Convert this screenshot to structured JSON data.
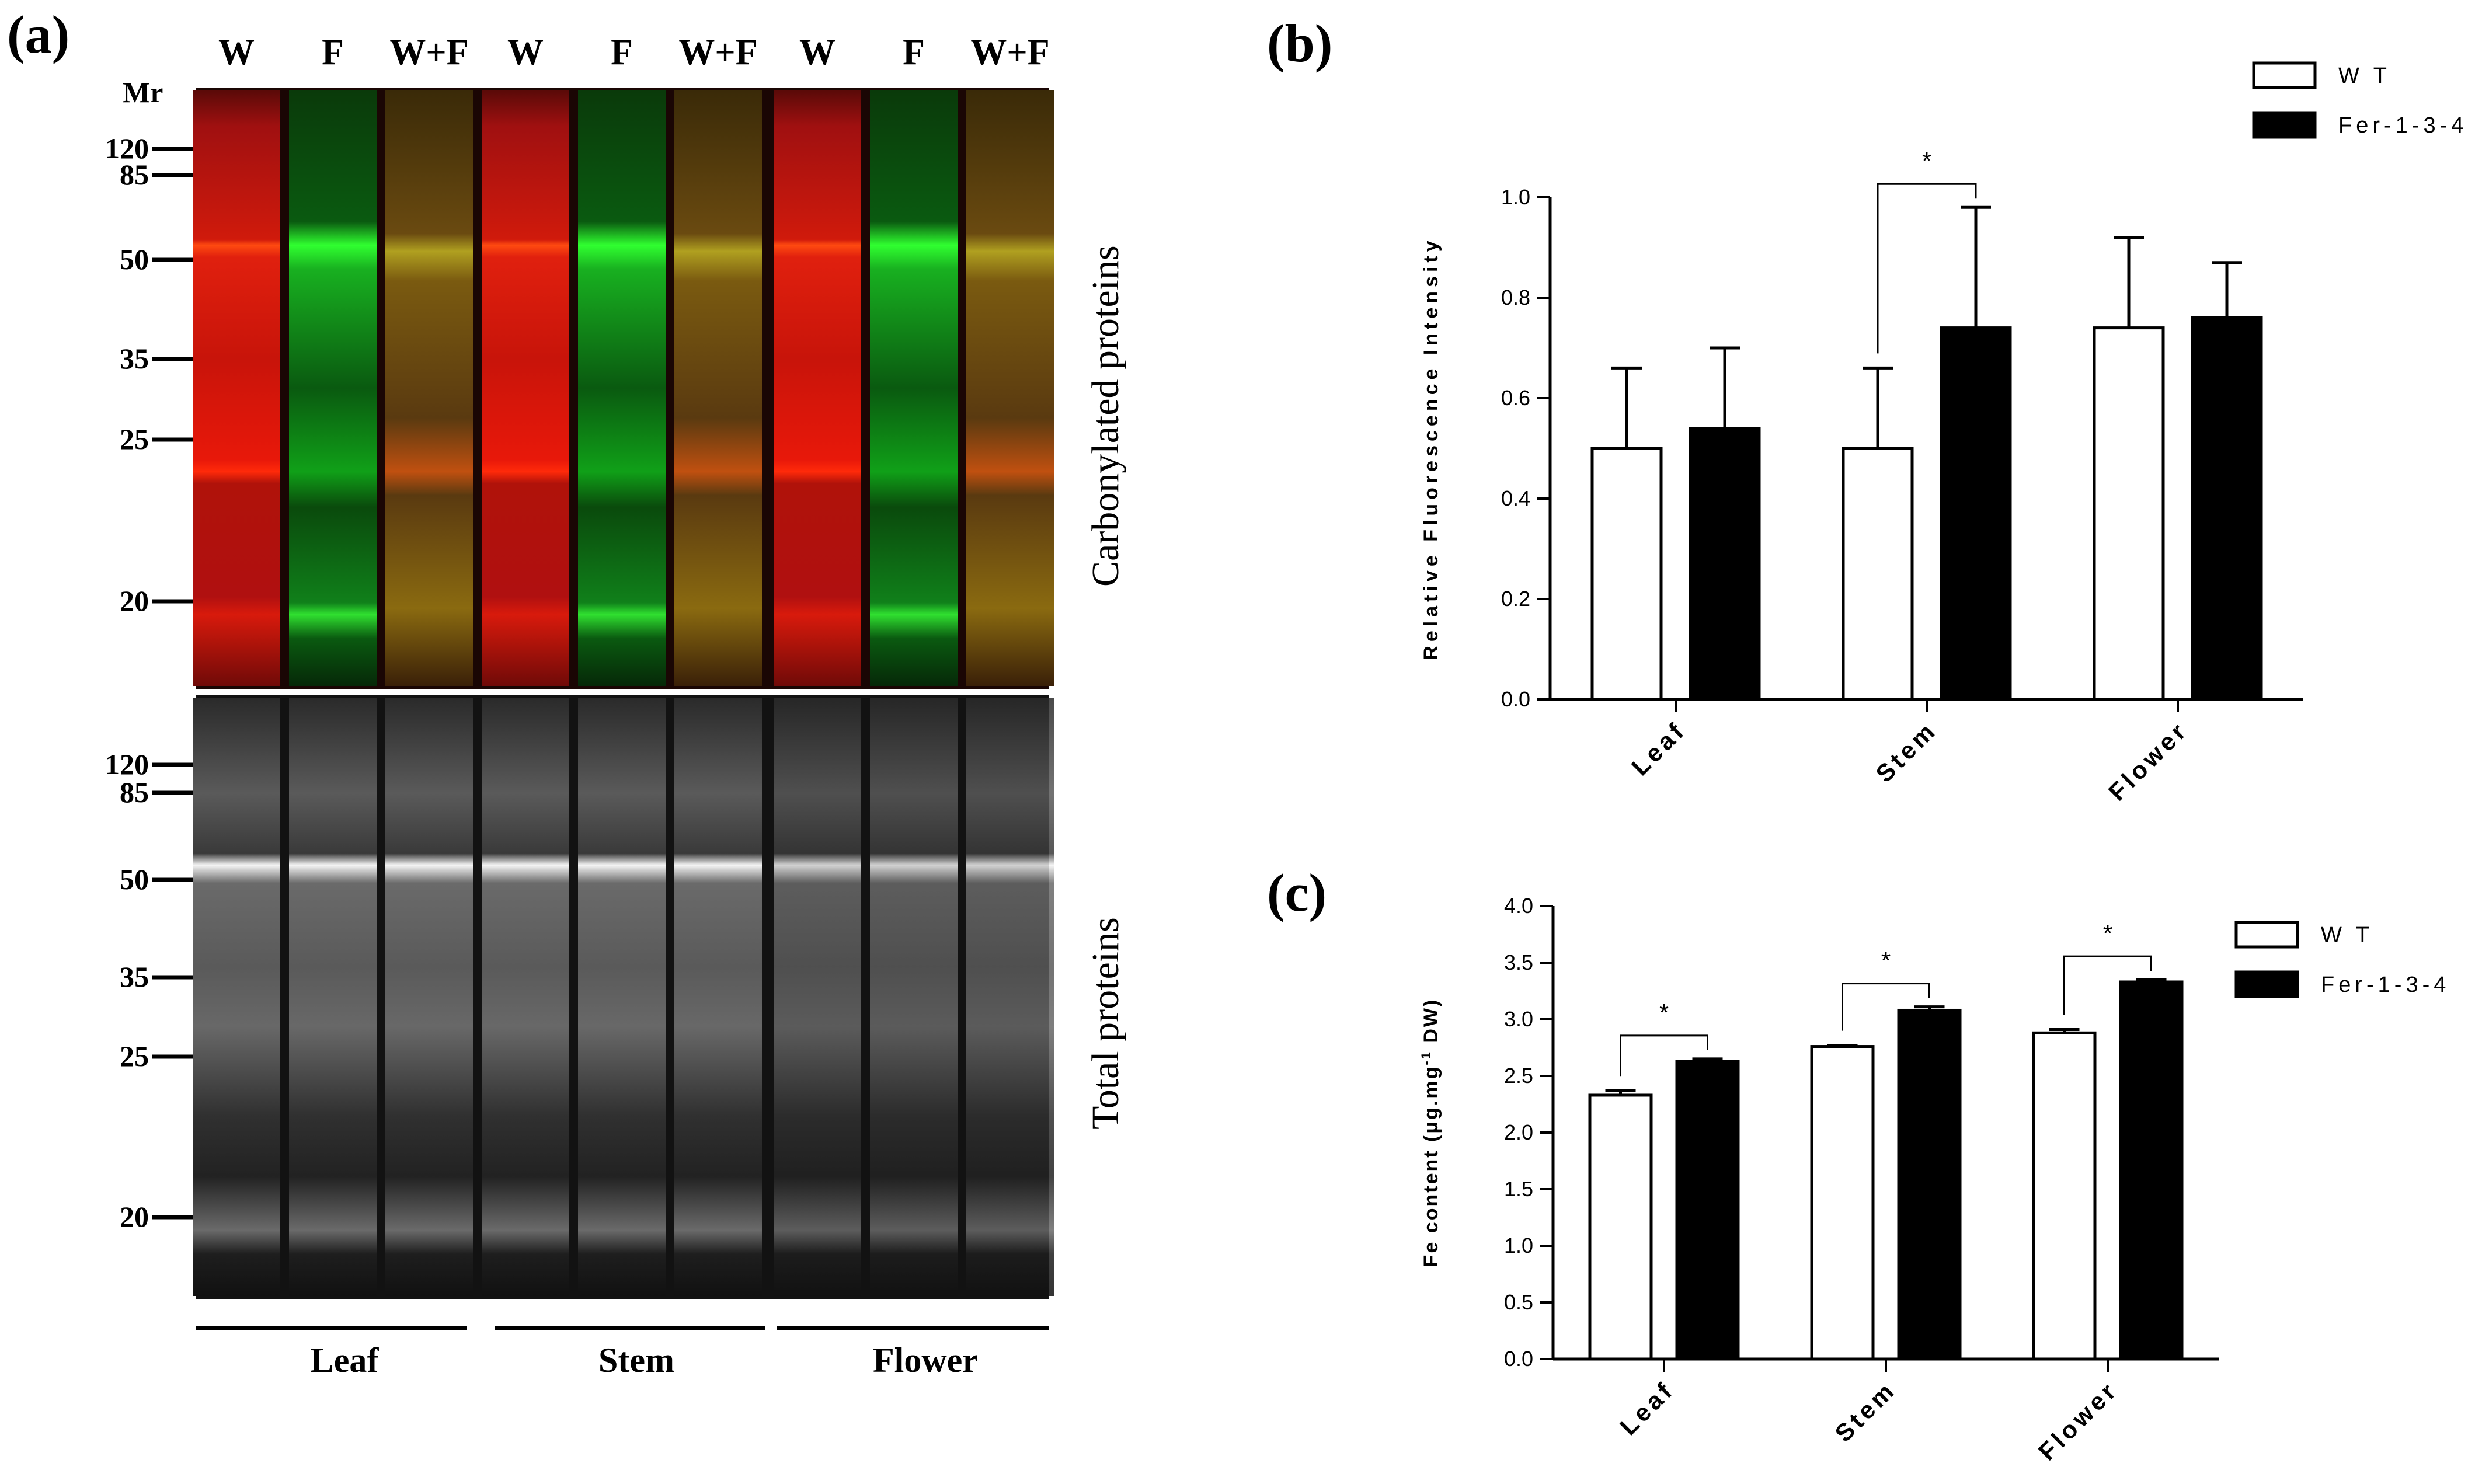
{
  "panel_a": {
    "label": "(a)",
    "mr_label": "Mr",
    "lanes": [
      "W",
      "F",
      "W+F",
      "W",
      "F",
      "W+F",
      "W",
      "F",
      "W+F"
    ],
    "markers_top": [
      "120",
      "85",
      "50",
      "35",
      "25",
      "20"
    ],
    "markers_bottom": [
      "120",
      "85",
      "50",
      "35",
      "25",
      "20"
    ],
    "top_blot_title": "Carbonylated proteins",
    "bottom_blot_title": "Total proteins",
    "tissues": [
      "Leaf",
      "Stem",
      "Flower"
    ]
  },
  "chart_data": [
    {
      "panel": "(b)",
      "type": "bar",
      "categories": [
        "Leaf",
        "Stem",
        "Flower"
      ],
      "series": [
        {
          "name": "W T",
          "fill": "#ffffff",
          "values": [
            0.5,
            0.5,
            0.74
          ],
          "errors": [
            0.16,
            0.16,
            0.18
          ]
        },
        {
          "name": "Fer-1-3-4",
          "fill": "#000000",
          "values": [
            0.54,
            0.74,
            0.76
          ],
          "errors": [
            0.16,
            0.24,
            0.11
          ]
        }
      ],
      "ylabel": "Relative Fluorescence Intensity",
      "ylim": [
        0,
        1.0
      ],
      "yticks": [
        "0.0",
        "0.2",
        "0.4",
        "0.6",
        "0.8",
        "1.0"
      ],
      "significance": [
        {
          "category": "Stem",
          "label": "*"
        }
      ],
      "legend_position": "top-right"
    },
    {
      "panel": "(c)",
      "type": "bar",
      "categories": [
        "Leaf",
        "Stem",
        "Flower"
      ],
      "series": [
        {
          "name": "W T",
          "fill": "#ffffff",
          "values": [
            2.33,
            2.76,
            2.88
          ],
          "errors": [
            0.04,
            0.01,
            0.03
          ]
        },
        {
          "name": "Fer-1-3-4",
          "fill": "#000000",
          "values": [
            2.63,
            3.08,
            3.33
          ],
          "errors": [
            0.02,
            0.03,
            0.02
          ]
        }
      ],
      "ylabel_prefix": "Fe content (μg.mg",
      "ylabel_sup": "-1",
      "ylabel_suffix": " DW)",
      "ylim": [
        0,
        4.0
      ],
      "yticks": [
        "0.0",
        "0.5",
        "1.0",
        "1.5",
        "2.0",
        "2.5",
        "3.0",
        "3.5",
        "4.0"
      ],
      "significance": [
        {
          "category": "Leaf",
          "label": "*"
        },
        {
          "category": "Stem",
          "label": "*"
        },
        {
          "category": "Flower",
          "label": "*"
        }
      ],
      "legend_position": "top-right"
    }
  ]
}
